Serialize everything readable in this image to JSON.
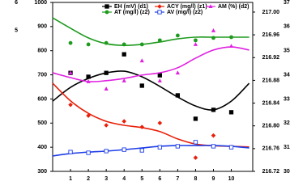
{
  "chart_data": {
    "type": "line",
    "x": [
      1,
      2,
      3,
      4,
      5,
      6,
      7,
      8,
      9,
      10
    ],
    "fit_x": [
      0,
      1,
      2,
      3,
      4,
      5,
      6,
      7,
      8,
      9,
      10,
      11
    ],
    "xlim": [
      0,
      11.2
    ],
    "xticks": [
      1,
      2,
      3,
      4,
      5,
      6,
      7,
      8,
      9,
      10
    ],
    "ylim": [
      300,
      1000
    ],
    "yticks": [
      300,
      400,
      500,
      600,
      700,
      800,
      900,
      1000
    ],
    "y3lim": [
      0,
      6
    ],
    "y3ticks": [
      5,
      6
    ],
    "y2lim": [
      216.72,
      217.017
    ],
    "y2ticks": [
      {
        "value": 216.72,
        "label": "216.72"
      },
      {
        "value": 216.76,
        "label": "216.76"
      },
      {
        "value": 216.8,
        "label": "216.80"
      },
      {
        "value": 216.84,
        "label": "216.84"
      },
      {
        "value": 216.88,
        "label": "216.88"
      },
      {
        "value": 216.92,
        "label": "216.92"
      },
      {
        "value": 216.96,
        "label": "216.96"
      },
      {
        "value": 217,
        "label": "217.00"
      }
    ],
    "y4lim": [
      30,
      37
    ],
    "y4ticks": [
      30,
      31,
      32,
      33,
      34,
      35,
      36,
      37
    ],
    "series": [
      {
        "name": "EH (mV) (d1)",
        "color": "#000000",
        "marker": "square",
        "axis": "y",
        "values": [
          708,
          692,
          708,
          785,
          655,
          698,
          615,
          518,
          555,
          545
        ],
        "fit": [
          591,
          648,
          685,
          708,
          715,
          692,
          652,
          608,
          571,
          555,
          591,
          665
        ]
      },
      {
        "name": "ACY (mg/l) (z1)",
        "color": "#e8200a",
        "marker": "diamond",
        "axis": "y2",
        "values": [
          216.837,
          216.818,
          216.801,
          216.808,
          216.798,
          216.805,
          216.764,
          216.744,
          216.783,
          216.763
        ],
        "fit": [
          216.875,
          216.844,
          216.822,
          216.808,
          216.801,
          216.797,
          216.79,
          216.777,
          216.768,
          216.765,
          216.764,
          216.763
        ]
      },
      {
        "name": "AM (%) (d2)",
        "color": "#e020e0",
        "marker": "triangle",
        "axis": "y3",
        "values": [
          3.5,
          3.19,
          2.93,
          3.22,
          3.93,
          3.22,
          3.5,
          4.51,
          5.0,
          4.45
        ],
        "fit": [
          3.5,
          3.33,
          3.19,
          3.22,
          3.3,
          3.42,
          3.5,
          3.68,
          4.02,
          4.31,
          4.42,
          4.31
        ]
      },
      {
        "name": "AT (mg/l) (z2)",
        "color": "#1e9a1e",
        "marker": "circle",
        "axis": "y4",
        "values": [
          35.32,
          35.26,
          35.32,
          35.26,
          35.26,
          35.43,
          35.63,
          35.43,
          35.53,
          35.56
        ],
        "fit": [
          36.36,
          35.93,
          35.53,
          35.29,
          35.22,
          35.26,
          35.36,
          35.49,
          35.56,
          35.56,
          35.56,
          35.56
        ]
      },
      {
        "name": "AV (mg/l) (z2)",
        "color": "#1e3ee8",
        "marker": "open-square",
        "axis": "y4",
        "values": [
          30.8,
          30.77,
          30.84,
          30.9,
          30.87,
          31.0,
          31.04,
          31.21,
          31.04,
          31.0
        ],
        "fit": [
          30.64,
          30.74,
          30.8,
          30.84,
          30.9,
          30.97,
          31.04,
          31.07,
          31.07,
          31.07,
          31.04,
          30.97
        ]
      }
    ]
  }
}
